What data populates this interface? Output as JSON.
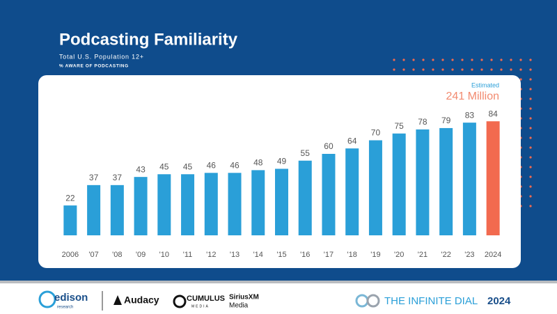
{
  "chart_data": {
    "type": "bar",
    "title": "Podcasting Familiarity",
    "subtitle": "Total U.S. Population 12+",
    "axis_label": "% AWARE OF PODCASTING",
    "annotation": {
      "label": "Estimated",
      "value": "241 Million"
    },
    "categories": [
      "2006",
      "'07",
      "'08",
      "'09",
      "'10",
      "'11",
      "'12",
      "'13",
      "'14",
      "'15",
      "'16",
      "'17",
      "'18",
      "'19",
      "'20",
      "'21",
      "'22",
      "'23",
      "2024"
    ],
    "values": [
      22,
      37,
      37,
      43,
      45,
      45,
      46,
      46,
      48,
      49,
      55,
      60,
      64,
      70,
      75,
      78,
      79,
      83,
      84
    ],
    "colors": [
      "#2a9fd8",
      "#2a9fd8",
      "#2a9fd8",
      "#2a9fd8",
      "#2a9fd8",
      "#2a9fd8",
      "#2a9fd8",
      "#2a9fd8",
      "#2a9fd8",
      "#2a9fd8",
      "#2a9fd8",
      "#2a9fd8",
      "#2a9fd8",
      "#2a9fd8",
      "#2a9fd8",
      "#2a9fd8",
      "#2a9fd8",
      "#2a9fd8",
      "#f26a4f"
    ]
  },
  "footer": {
    "logos": [
      "edison",
      "research",
      "Audacy",
      "CUMULUS",
      "MEDIA",
      "SiriusXM",
      "Media"
    ],
    "brand": "THE INFINITE DIAL",
    "brand_year": "2024"
  }
}
